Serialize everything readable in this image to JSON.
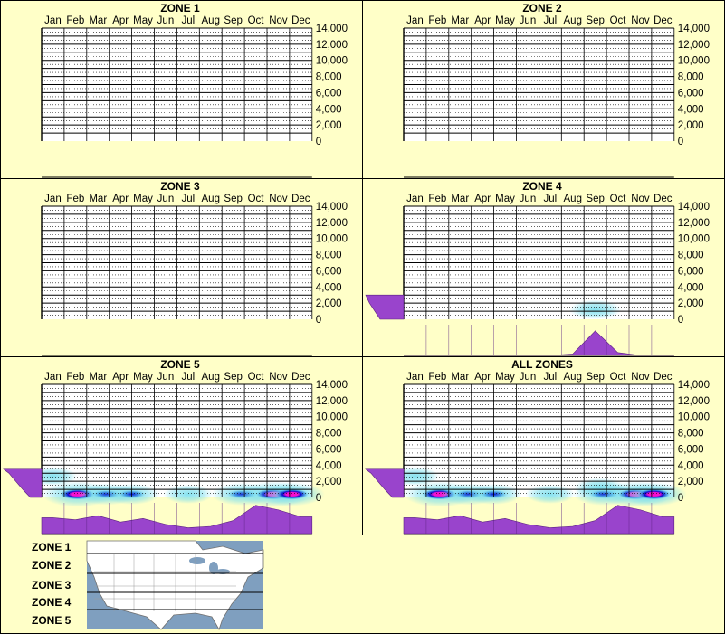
{
  "months": [
    "Jan",
    "Feb",
    "Mar",
    "Apr",
    "May",
    "Jun",
    "Jul",
    "Aug",
    "Sep",
    "Oct",
    "Nov",
    "Dec"
  ],
  "y_ticks": [
    "14,000",
    "12,000",
    "10,000",
    "8,000",
    "6,000",
    "4,000",
    "2,000",
    "0"
  ],
  "colors": {
    "background": "#ffffc8",
    "grid": "#000000",
    "purple": "#9944cc",
    "cyan": "#7fe0ee",
    "blue": "#0000cc",
    "magenta": "#ff00cc",
    "map_water": "#7f9fbf",
    "map_land": "#ffffff"
  },
  "chart_data": [
    {
      "type": "heatmap",
      "title": "ZONE 1",
      "categories": [
        "Jan",
        "Feb",
        "Mar",
        "Apr",
        "May",
        "Jun",
        "Jul",
        "Aug",
        "Sep",
        "Oct",
        "Nov",
        "Dec"
      ],
      "ylim": [
        0,
        14000
      ],
      "monthly_activity": [],
      "elevation_profile": [],
      "hotspots": []
    },
    {
      "type": "heatmap",
      "title": "ZONE 2",
      "categories": [
        "Jan",
        "Feb",
        "Mar",
        "Apr",
        "May",
        "Jun",
        "Jul",
        "Aug",
        "Sep",
        "Oct",
        "Nov",
        "Dec"
      ],
      "ylim": [
        0,
        14000
      ],
      "monthly_activity": [],
      "elevation_profile": [],
      "hotspots": []
    },
    {
      "type": "heatmap",
      "title": "ZONE 3",
      "categories": [
        "Jan",
        "Feb",
        "Mar",
        "Apr",
        "May",
        "Jun",
        "Jul",
        "Aug",
        "Sep",
        "Oct",
        "Nov",
        "Dec"
      ],
      "ylim": [
        0,
        14000
      ],
      "monthly_activity": [],
      "elevation_profile": [],
      "hotspots": []
    },
    {
      "type": "heatmap",
      "title": "ZONE 4",
      "categories": [
        "Jan",
        "Feb",
        "Mar",
        "Apr",
        "May",
        "Jun",
        "Jul",
        "Aug",
        "Sep",
        "Oct",
        "Nov",
        "Dec"
      ],
      "ylim": [
        0,
        14000
      ],
      "monthly_activity": [
        0,
        0,
        0,
        0,
        0,
        0,
        0,
        0.05,
        0.85,
        0.1,
        0,
        0
      ],
      "elevation_profile": [
        {
          "elev": 0,
          "v": 0.62
        },
        {
          "elev": 1000,
          "v": 0.76
        },
        {
          "elev": 2000,
          "v": 0.9
        },
        {
          "elev": 3000,
          "v": 1.0
        }
      ],
      "hotspots": [
        {
          "month": 9.0,
          "elev": 1200,
          "intensity": 0.35
        }
      ]
    },
    {
      "type": "heatmap",
      "title": "ZONE 5",
      "categories": [
        "Jan",
        "Feb",
        "Mar",
        "Apr",
        "May",
        "Jun",
        "Jul",
        "Aug",
        "Sep",
        "Oct",
        "Nov",
        "Dec"
      ],
      "ylim": [
        0,
        14000
      ],
      "monthly_activity": [
        0.55,
        0.48,
        0.62,
        0.4,
        0.52,
        0.32,
        0.2,
        0.25,
        0.45,
        0.98,
        0.82,
        0.58
      ],
      "elevation_profile": [
        {
          "elev": 0,
          "v": 0.3
        },
        {
          "elev": 1000,
          "v": 0.5
        },
        {
          "elev": 2000,
          "v": 0.68
        },
        {
          "elev": 3000,
          "v": 0.86
        },
        {
          "elev": 3500,
          "v": 1.0
        }
      ],
      "hotspots": [
        {
          "month": 1.0,
          "elev": 2600,
          "intensity": 0.25
        },
        {
          "month": 2.1,
          "elev": 400,
          "intensity": 1.0
        },
        {
          "month": 3.4,
          "elev": 400,
          "intensity": 0.6
        },
        {
          "month": 4.5,
          "elev": 400,
          "intensity": 0.5
        },
        {
          "month": 7.0,
          "elev": 400,
          "intensity": 0.3
        },
        {
          "month": 9.4,
          "elev": 400,
          "intensity": 0.7
        },
        {
          "month": 10.8,
          "elev": 400,
          "intensity": 1.0
        },
        {
          "month": 11.6,
          "elev": 400,
          "intensity": 0.8
        }
      ]
    },
    {
      "type": "heatmap",
      "title": "ALL ZONES",
      "categories": [
        "Jan",
        "Feb",
        "Mar",
        "Apr",
        "May",
        "Jun",
        "Jul",
        "Aug",
        "Sep",
        "Oct",
        "Nov",
        "Dec"
      ],
      "ylim": [
        0,
        14000
      ],
      "monthly_activity": [
        0.55,
        0.48,
        0.62,
        0.4,
        0.52,
        0.32,
        0.2,
        0.25,
        0.45,
        0.98,
        0.82,
        0.58
      ],
      "elevation_profile": [
        {
          "elev": 0,
          "v": 0.3
        },
        {
          "elev": 1000,
          "v": 0.5
        },
        {
          "elev": 2000,
          "v": 0.68
        },
        {
          "elev": 3000,
          "v": 0.86
        },
        {
          "elev": 3500,
          "v": 1.0
        }
      ],
      "hotspots": [
        {
          "month": 1.0,
          "elev": 2600,
          "intensity": 0.25
        },
        {
          "month": 2.1,
          "elev": 400,
          "intensity": 1.0
        },
        {
          "month": 3.4,
          "elev": 400,
          "intensity": 0.6
        },
        {
          "month": 4.5,
          "elev": 400,
          "intensity": 0.5
        },
        {
          "month": 7.0,
          "elev": 400,
          "intensity": 0.3
        },
        {
          "month": 9.2,
          "elev": 1200,
          "intensity": 0.35
        },
        {
          "month": 9.4,
          "elev": 400,
          "intensity": 0.7
        },
        {
          "month": 10.8,
          "elev": 400,
          "intensity": 1.0
        },
        {
          "month": 11.6,
          "elev": 400,
          "intensity": 0.8
        }
      ]
    }
  ],
  "legend": {
    "zones": [
      "ZONE 1",
      "ZONE 2",
      "ZONE 3",
      "ZONE 4",
      "ZONE 5"
    ]
  }
}
